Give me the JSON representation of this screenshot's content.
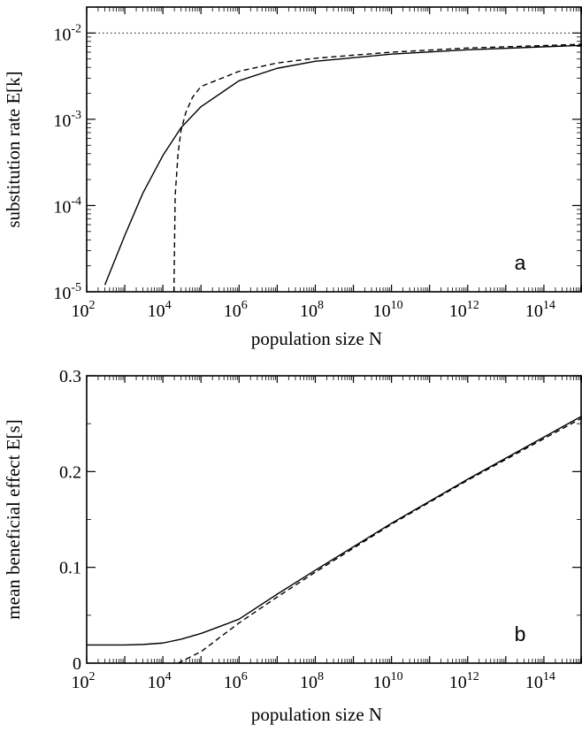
{
  "chart_data": [
    {
      "type": "line",
      "panel_label": "a",
      "xlabel": "population size N",
      "ylabel": "substitution rate E[k]",
      "x_scale": "log",
      "y_scale": "log",
      "xlim": [
        100,
        1000000000000000.0
      ],
      "ylim": [
        1e-05,
        0.02
      ],
      "x_ticks": [
        {
          "base": "10",
          "exp": "2",
          "value": 100.0
        },
        {
          "base": "10",
          "exp": "4",
          "value": 10000.0
        },
        {
          "base": "10",
          "exp": "6",
          "value": 1000000.0
        },
        {
          "base": "10",
          "exp": "8",
          "value": 100000000.0
        },
        {
          "base": "10",
          "exp": "10",
          "value": 10000000000.0
        },
        {
          "base": "10",
          "exp": "12",
          "value": 1000000000000.0
        },
        {
          "base": "10",
          "exp": "14",
          "value": 100000000000000.0
        }
      ],
      "y_ticks": [
        {
          "base": "10",
          "exp": "-5",
          "value": 1e-05
        },
        {
          "base": "10",
          "exp": "-4",
          "value": 0.0001
        },
        {
          "base": "10",
          "exp": "-3",
          "value": 0.001
        },
        {
          "base": "10",
          "exp": "-2",
          "value": 0.01
        }
      ],
      "series": [
        {
          "style": "solid",
          "x": [
            300,
            1000,
            3000,
            10000,
            30000,
            100000,
            1000000.0,
            10000000.0,
            100000000.0,
            10000000000.0,
            1000000000000.0,
            1000000000000000.0
          ],
          "y": [
            1.2e-05,
            4.5e-05,
            0.00014,
            0.00038,
            0.0008,
            0.0014,
            0.0028,
            0.0039,
            0.0047,
            0.0057,
            0.0064,
            0.0072
          ]
        },
        {
          "style": "dashed",
          "x": [
            19500,
            21000,
            25000,
            30000,
            40000,
            60000,
            100000,
            1000000.0,
            10000000.0,
            100000000.0,
            10000000000.0,
            1000000000000.0,
            1000000000000000.0
          ],
          "y": [
            1e-05,
            0.00013,
            0.0004,
            0.00075,
            0.0012,
            0.0018,
            0.0024,
            0.0036,
            0.0045,
            0.0051,
            0.006,
            0.0067,
            0.0074
          ]
        },
        {
          "style": "dotted",
          "x": [
            100,
            1000000000000000.0
          ],
          "y": [
            0.01,
            0.01
          ]
        }
      ]
    },
    {
      "type": "line",
      "panel_label": "b",
      "xlabel": "population size N",
      "ylabel": "mean beneficial effect E[s]",
      "x_scale": "log",
      "y_scale": "linear",
      "xlim": [
        100,
        1000000000000000.0
      ],
      "ylim": [
        0,
        0.3
      ],
      "x_ticks": [
        {
          "base": "10",
          "exp": "2",
          "value": 100.0
        },
        {
          "base": "10",
          "exp": "4",
          "value": 10000.0
        },
        {
          "base": "10",
          "exp": "6",
          "value": 1000000.0
        },
        {
          "base": "10",
          "exp": "8",
          "value": 100000000.0
        },
        {
          "base": "10",
          "exp": "10",
          "value": 10000000000.0
        },
        {
          "base": "10",
          "exp": "12",
          "value": 1000000000000.0
        },
        {
          "base": "10",
          "exp": "14",
          "value": 100000000000000.0
        }
      ],
      "y_ticks": [
        {
          "label": "0",
          "value": 0
        },
        {
          "label": "0.1",
          "value": 0.1
        },
        {
          "label": "0.2",
          "value": 0.2
        },
        {
          "label": "0.3",
          "value": 0.3
        }
      ],
      "series": [
        {
          "style": "solid",
          "x": [
            100,
            1000,
            3000,
            10000,
            30000,
            100000,
            300000,
            1000000.0,
            10000000.0,
            100000000.0,
            10000000000.0,
            1000000000000.0,
            1000000000000000.0
          ],
          "y": [
            0.019,
            0.019,
            0.0195,
            0.021,
            0.025,
            0.031,
            0.038,
            0.046,
            0.072,
            0.097,
            0.146,
            0.192,
            0.258
          ]
        },
        {
          "style": "dashed",
          "x": [
            25000,
            100000,
            1000000.0,
            10000000.0,
            100000000.0,
            10000000000.0,
            1000000000000.0,
            1000000000000000.0
          ],
          "y": [
            0.0,
            0.012,
            0.042,
            0.069,
            0.095,
            0.145,
            0.191,
            0.256
          ]
        }
      ]
    }
  ]
}
